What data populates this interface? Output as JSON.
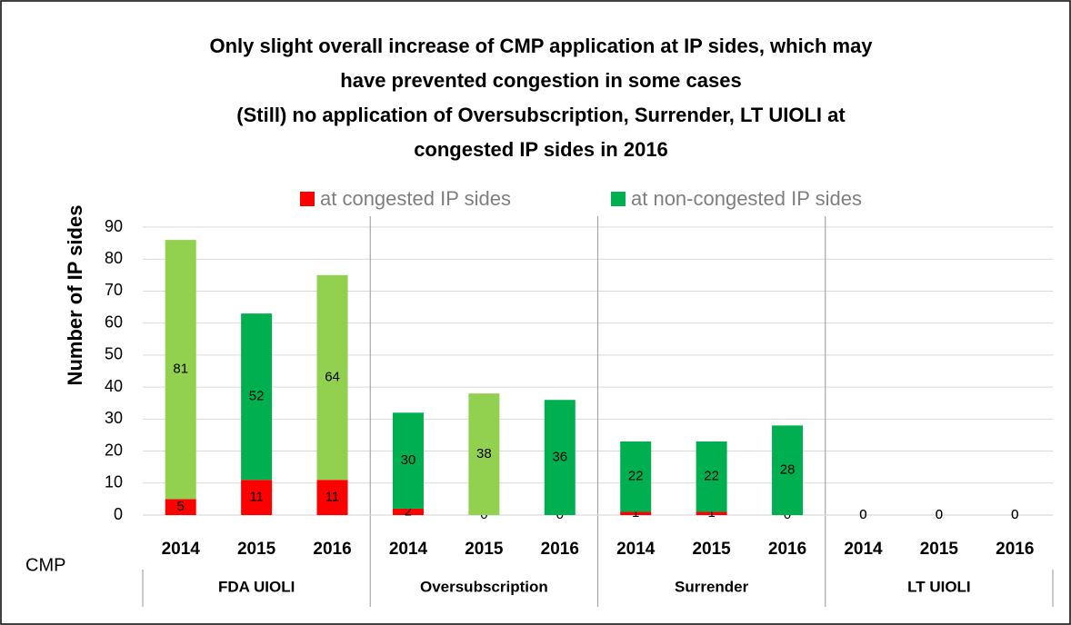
{
  "chart_data": {
    "type": "stacked_bar",
    "title": [
      "Only slight overall increase of CMP application at IP sides, which may",
      "have prevented congestion in some cases",
      "(Still) no application of Oversubscription, Surrender, LT UIOLI at",
      "congested IP sides in 2016"
    ],
    "y_label": "Number of IP sides",
    "x_label": "CMP",
    "categories": [
      "2014",
      "2015",
      "2016",
      "2014",
      "2015",
      "2016",
      "2014",
      "2015",
      "2016",
      "2014",
      "2015",
      "2016"
    ],
    "groups": [
      {
        "name": "FDA UIOLI",
        "size": 3
      },
      {
        "name": "Oversubscription",
        "size": 3
      },
      {
        "name": "Surrender",
        "size": 3
      },
      {
        "name": "LT UIOLI",
        "size": 3
      }
    ],
    "series": [
      {
        "name": "at congested IP sides",
        "color": "#ff0000",
        "values": [
          5,
          11,
          11,
          2,
          0,
          0,
          1,
          1,
          0,
          0,
          0,
          0
        ]
      },
      {
        "name": "at non-congested IP sides",
        "color": "#00b050",
        "values": [
          81,
          52,
          64,
          30,
          38,
          36,
          22,
          22,
          28,
          0,
          0,
          0
        ],
        "colors": [
          "#92d050",
          "#00b050",
          "#92d050",
          "#00b050",
          "#92d050",
          "#00b050",
          "#00b050",
          "#00b050",
          "#00b050",
          "#00b050",
          "#00b050",
          "#00b050"
        ]
      }
    ],
    "ylim": [
      0,
      90
    ],
    "yticks": [
      0,
      10,
      20,
      30,
      40,
      50,
      60,
      70,
      80,
      90
    ],
    "grid": true
  }
}
